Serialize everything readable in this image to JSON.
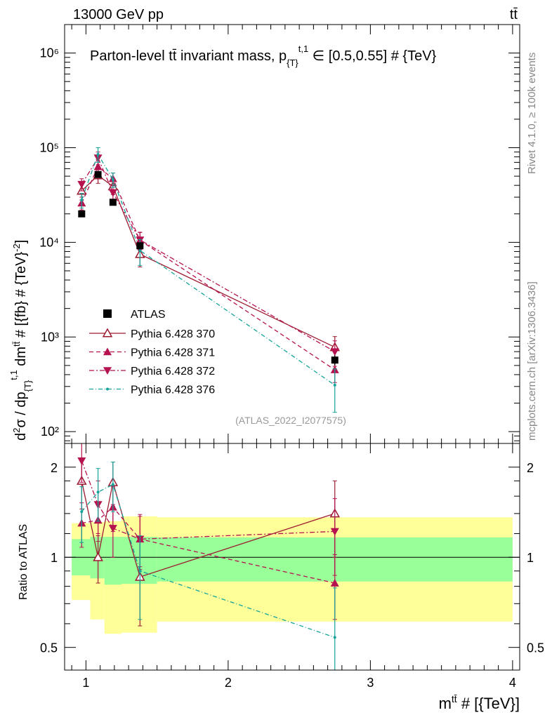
{
  "header": {
    "left": "13000 GeV pp",
    "right": "tt̄"
  },
  "side_labels": {
    "rivet": "Rivet 4.1.0, ≥ 100k events",
    "mcplots": "mcplots.cern.ch [arXiv:1306.3436]"
  },
  "chart_data": [
    {
      "type": "line",
      "panel": "main",
      "title": "Parton-level tt̄ invariant mass, p{T}t,1 ∈ [0.5,0.55] # {TeV}",
      "xlabel": "mtt̄ # [{TeV}]",
      "ylabel": "d²σ / dp{T}t,1 dmtt̄ # [{fb} # {TeV}⁻²]",
      "yscale": "log",
      "xlim": [
        0.85,
        4.05
      ],
      "ylim": [
        75,
        2000000
      ],
      "yticks": [
        {
          "v": 100,
          "label": "10²"
        },
        {
          "v": 1000,
          "label": "10³"
        },
        {
          "v": 10000,
          "label": "10⁴"
        },
        {
          "v": 100000,
          "label": "10⁵"
        },
        {
          "v": 1000000,
          "label": "10⁶"
        }
      ],
      "watermark": "(ATLAS_2022_I2077575)",
      "legend_position": "center-left",
      "x": [
        0.97,
        1.085,
        1.19,
        1.38,
        2.75
      ],
      "data": {
        "name": "ATLAS",
        "color": "#000000",
        "values": [
          20000,
          52000,
          26500,
          9200,
          570
        ],
        "errors": [
          1500,
          4000,
          2000,
          800,
          70
        ]
      },
      "series": [
        {
          "name": "Pythia 6.428 370",
          "color": "#9b1b30",
          "dash": "",
          "marker": "triangle-up-open",
          "values": [
            35000,
            51000,
            39000,
            7500,
            780
          ],
          "errors": [
            7000,
            9000,
            7000,
            2000,
            230
          ]
        },
        {
          "name": "Pythia 6.428 371",
          "color": "#b5124f",
          "dash": "6,4",
          "marker": "triangle-up",
          "values": [
            26000,
            63000,
            47000,
            10500,
            450
          ],
          "errors": [
            4000,
            9000,
            7000,
            2200,
            120
          ]
        },
        {
          "name": "Pythia 6.428 372",
          "color": "#b5124f",
          "dash": "7,3,2,3",
          "marker": "triangle-down",
          "values": [
            41000,
            78000,
            33500,
            10600,
            700
          ],
          "errors": [
            6000,
            12000,
            6000,
            2200,
            210
          ]
        },
        {
          "name": "Pythia 6.428 376",
          "color": "#14a39a",
          "dash": "6,3,1,3",
          "marker": "dot",
          "values": [
            28000,
            85000,
            46000,
            8200,
            310
          ],
          "errors": [
            5000,
            15000,
            8000,
            2500,
            150
          ]
        }
      ]
    },
    {
      "type": "line",
      "panel": "ratio",
      "ylabel": "Ratio to ATLAS",
      "yscale": "log",
      "xlim": [
        0.85,
        4.05
      ],
      "ylim": [
        0.42,
        2.4
      ],
      "yticks": [
        {
          "v": 0.5,
          "label": "0.5"
        },
        {
          "v": 1,
          "label": "1"
        },
        {
          "v": 2,
          "label": "2"
        }
      ],
      "xticks": [
        {
          "v": 1,
          "label": "1"
        },
        {
          "v": 2,
          "label": "2"
        },
        {
          "v": 3,
          "label": "3"
        },
        {
          "v": 4,
          "label": "4"
        }
      ],
      "bands": [
        {
          "x0": 0.9,
          "x1": 1.03,
          "g_lo": 0.87,
          "g_hi": 1.15,
          "y_lo": 0.72,
          "y_hi": 1.3
        },
        {
          "x0": 1.03,
          "x1": 1.13,
          "g_lo": 0.85,
          "g_hi": 1.17,
          "y_lo": 0.62,
          "y_hi": 1.31
        },
        {
          "x0": 1.13,
          "x1": 1.25,
          "g_lo": 0.81,
          "g_hi": 1.17,
          "y_lo": 0.555,
          "y_hi": 1.32
        },
        {
          "x0": 1.25,
          "x1": 1.5,
          "g_lo": 0.815,
          "g_hi": 1.17,
          "y_lo": 0.56,
          "y_hi": 1.37
        },
        {
          "x0": 1.5,
          "x1": 4.0,
          "g_lo": 0.83,
          "g_hi": 1.165,
          "y_lo": 0.61,
          "y_hi": 1.36
        }
      ],
      "series": [
        {
          "name": "Pythia 6.428 370",
          "values": [
            1.8,
            1.0,
            1.78,
            0.86,
            1.4
          ],
          "errors": [
            0.35,
            0.18,
            0.3,
            0.27,
            0.4
          ]
        },
        {
          "name": "Pythia 6.428 371",
          "values": [
            1.3,
            1.33,
            1.47,
            1.15,
            0.82
          ],
          "errors": [
            0.22,
            0.2,
            0.25,
            0.24,
            0.2
          ]
        },
        {
          "name": "Pythia 6.428 372",
          "values": [
            2.1,
            1.5,
            1.25,
            1.15,
            1.22
          ],
          "errors": [
            0.32,
            0.3,
            0.25,
            0.22,
            0.35
          ]
        },
        {
          "name": "Pythia 6.428 376",
          "values": [
            1.42,
            1.65,
            1.75,
            0.9,
            0.54
          ],
          "errors": [
            0.3,
            0.33,
            0.33,
            0.28,
            0.25
          ]
        }
      ]
    }
  ]
}
